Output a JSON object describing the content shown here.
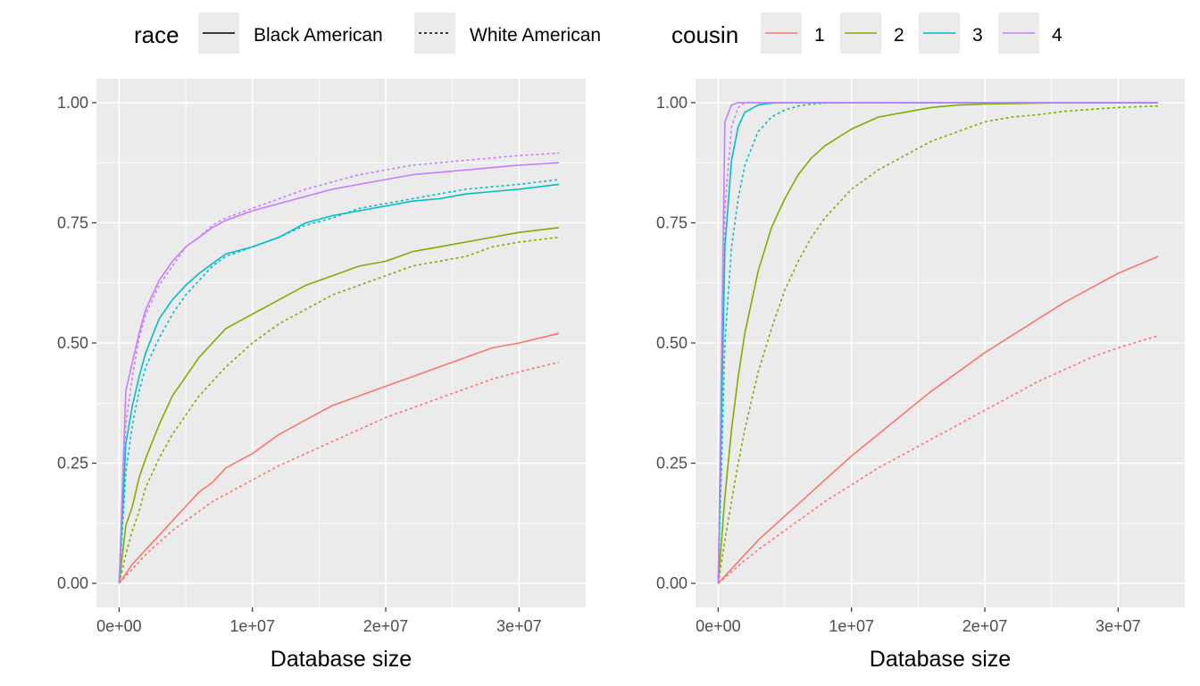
{
  "legend": {
    "race_title": "race",
    "race_items": [
      {
        "label": "Black American",
        "linetype": "solid"
      },
      {
        "label": "White American",
        "linetype": "dotted"
      }
    ],
    "cousin_title": "cousin",
    "cousin_items": [
      {
        "label": "1",
        "color": "#F8766D"
      },
      {
        "label": "2",
        "color": "#7CAE00"
      },
      {
        "label": "3",
        "color": "#00BFC4"
      },
      {
        "label": "4",
        "color": "#C77CFF"
      }
    ]
  },
  "chart_data": [
    {
      "type": "line",
      "title": "",
      "xlabel": "Database size",
      "ylabel": "",
      "xlim": [
        -1700000,
        35000000
      ],
      "ylim": [
        -0.05,
        1.05
      ],
      "x_ticks": [
        0,
        10000000,
        20000000,
        30000000
      ],
      "x_tick_labels": [
        "0e+00",
        "1e+07",
        "2e+07",
        "3e+07"
      ],
      "y_ticks": [
        0,
        0.25,
        0.5,
        0.75,
        1.0
      ],
      "y_tick_labels": [
        "0.00",
        "0.25",
        "0.50",
        "0.75",
        "1.00"
      ],
      "grid": true,
      "x": [
        0,
        500000,
        1000000,
        1500000,
        2000000,
        3000000,
        4000000,
        5000000,
        6000000,
        7000000,
        8000000,
        10000000,
        12000000,
        14000000,
        16000000,
        18000000,
        20000000,
        22000000,
        24000000,
        26000000,
        28000000,
        30000000,
        33000000
      ],
      "series": [
        {
          "name": "cousin 1 · Black American",
          "cousin": "1",
          "race": "Black American",
          "values": [
            0,
            0.02,
            0.04,
            0.055,
            0.07,
            0.1,
            0.13,
            0.16,
            0.19,
            0.21,
            0.24,
            0.27,
            0.31,
            0.34,
            0.37,
            0.39,
            0.41,
            0.43,
            0.45,
            0.47,
            0.49,
            0.5,
            0.52
          ]
        },
        {
          "name": "cousin 1 · White American",
          "cousin": "1",
          "race": "White American",
          "values": [
            0,
            0.015,
            0.03,
            0.045,
            0.06,
            0.085,
            0.11,
            0.13,
            0.15,
            0.17,
            0.185,
            0.215,
            0.245,
            0.27,
            0.295,
            0.32,
            0.345,
            0.365,
            0.385,
            0.405,
            0.425,
            0.44,
            0.46
          ]
        },
        {
          "name": "cousin 2 · Black American",
          "cousin": "2",
          "race": "Black American",
          "values": [
            0,
            0.12,
            0.16,
            0.22,
            0.26,
            0.33,
            0.39,
            0.43,
            0.47,
            0.5,
            0.53,
            0.56,
            0.59,
            0.62,
            0.64,
            0.66,
            0.67,
            0.69,
            0.7,
            0.71,
            0.72,
            0.73,
            0.74
          ]
        },
        {
          "name": "cousin 2 · White American",
          "cousin": "2",
          "race": "White American",
          "values": [
            0,
            0.06,
            0.11,
            0.15,
            0.2,
            0.26,
            0.31,
            0.35,
            0.39,
            0.42,
            0.45,
            0.5,
            0.54,
            0.57,
            0.6,
            0.62,
            0.64,
            0.66,
            0.67,
            0.68,
            0.7,
            0.71,
            0.72
          ]
        },
        {
          "name": "cousin 3 · Black American",
          "cousin": "3",
          "race": "Black American",
          "values": [
            0,
            0.29,
            0.37,
            0.43,
            0.48,
            0.55,
            0.59,
            0.62,
            0.645,
            0.665,
            0.685,
            0.7,
            0.72,
            0.75,
            0.765,
            0.775,
            0.785,
            0.795,
            0.8,
            0.81,
            0.815,
            0.82,
            0.83
          ]
        },
        {
          "name": "cousin 3 · White American",
          "cousin": "3",
          "race": "White American",
          "values": [
            0,
            0.23,
            0.33,
            0.4,
            0.45,
            0.51,
            0.56,
            0.6,
            0.63,
            0.66,
            0.68,
            0.7,
            0.72,
            0.745,
            0.76,
            0.78,
            0.79,
            0.8,
            0.81,
            0.82,
            0.825,
            0.83,
            0.84
          ]
        },
        {
          "name": "cousin 4 · Black American",
          "cousin": "4",
          "race": "Black American",
          "values": [
            0,
            0.4,
            0.46,
            0.52,
            0.57,
            0.63,
            0.67,
            0.7,
            0.72,
            0.74,
            0.755,
            0.775,
            0.79,
            0.805,
            0.82,
            0.83,
            0.84,
            0.85,
            0.855,
            0.86,
            0.865,
            0.87,
            0.875
          ]
        },
        {
          "name": "cousin 4 · White American",
          "cousin": "4",
          "race": "White American",
          "values": [
            0,
            0.33,
            0.43,
            0.51,
            0.56,
            0.62,
            0.66,
            0.7,
            0.72,
            0.745,
            0.76,
            0.78,
            0.8,
            0.82,
            0.835,
            0.85,
            0.86,
            0.87,
            0.875,
            0.88,
            0.885,
            0.89,
            0.895
          ]
        }
      ]
    },
    {
      "type": "line",
      "title": "",
      "xlabel": "Database size",
      "ylabel": "",
      "xlim": [
        -1700000,
        35000000
      ],
      "ylim": [
        -0.05,
        1.05
      ],
      "x_ticks": [
        0,
        10000000,
        20000000,
        30000000
      ],
      "x_tick_labels": [
        "0e+00",
        "1e+07",
        "2e+07",
        "3e+07"
      ],
      "y_ticks": [
        0,
        0.25,
        0.5,
        0.75,
        1.0
      ],
      "y_tick_labels": [
        "0.00",
        "0.25",
        "0.50",
        "0.75",
        "1.00"
      ],
      "grid": true,
      "x": [
        0,
        500000,
        1000000,
        1500000,
        2000000,
        3000000,
        4000000,
        5000000,
        6000000,
        7000000,
        8000000,
        10000000,
        12000000,
        14000000,
        16000000,
        18000000,
        20000000,
        22000000,
        24000000,
        26000000,
        28000000,
        30000000,
        33000000
      ],
      "series": [
        {
          "name": "cousin 1 · Black American",
          "cousin": "1",
          "race": "Black American",
          "values": [
            0,
            0.015,
            0.03,
            0.045,
            0.06,
            0.09,
            0.115,
            0.14,
            0.165,
            0.19,
            0.215,
            0.265,
            0.31,
            0.355,
            0.4,
            0.44,
            0.48,
            0.515,
            0.55,
            0.585,
            0.615,
            0.645,
            0.68
          ]
        },
        {
          "name": "cousin 1 · White American",
          "cousin": "1",
          "race": "White American",
          "values": [
            0,
            0.012,
            0.024,
            0.036,
            0.048,
            0.07,
            0.09,
            0.11,
            0.13,
            0.15,
            0.17,
            0.205,
            0.24,
            0.27,
            0.3,
            0.33,
            0.36,
            0.39,
            0.42,
            0.445,
            0.47,
            0.49,
            0.515
          ]
        },
        {
          "name": "cousin 2 · Black American",
          "cousin": "2",
          "race": "Black American",
          "values": [
            0,
            0.18,
            0.32,
            0.43,
            0.52,
            0.65,
            0.74,
            0.8,
            0.85,
            0.885,
            0.91,
            0.945,
            0.97,
            0.98,
            0.99,
            0.995,
            0.997,
            0.998,
            0.999,
            1.0,
            1.0,
            1.0,
            1.0
          ]
        },
        {
          "name": "cousin 2 · White American",
          "cousin": "2",
          "race": "White American",
          "values": [
            0,
            0.09,
            0.17,
            0.25,
            0.32,
            0.44,
            0.53,
            0.61,
            0.67,
            0.72,
            0.76,
            0.82,
            0.86,
            0.89,
            0.92,
            0.94,
            0.96,
            0.97,
            0.975,
            0.982,
            0.986,
            0.99,
            0.993
          ]
        },
        {
          "name": "cousin 3 · Black American",
          "cousin": "3",
          "race": "Black American",
          "values": [
            0,
            0.7,
            0.88,
            0.95,
            0.98,
            0.995,
            0.999,
            1.0,
            1.0,
            1.0,
            1.0,
            1.0,
            1.0,
            1.0,
            1.0,
            1.0,
            1.0,
            1.0,
            1.0,
            1.0,
            1.0,
            1.0,
            1.0
          ]
        },
        {
          "name": "cousin 3 · White American",
          "cousin": "3",
          "race": "White American",
          "values": [
            0,
            0.5,
            0.7,
            0.8,
            0.87,
            0.94,
            0.97,
            0.985,
            0.993,
            0.997,
            0.999,
            1.0,
            1.0,
            1.0,
            1.0,
            1.0,
            1.0,
            1.0,
            1.0,
            1.0,
            1.0,
            1.0,
            1.0
          ]
        },
        {
          "name": "cousin 4 · Black American",
          "cousin": "4",
          "race": "Black American",
          "values": [
            0,
            0.96,
            0.995,
            1.0,
            1.0,
            1.0,
            1.0,
            1.0,
            1.0,
            1.0,
            1.0,
            1.0,
            1.0,
            1.0,
            1.0,
            1.0,
            1.0,
            1.0,
            1.0,
            1.0,
            1.0,
            1.0,
            1.0
          ]
        },
        {
          "name": "cousin 4 · White American",
          "cousin": "4",
          "race": "White American",
          "values": [
            0,
            0.78,
            0.95,
            0.99,
            1.0,
            1.0,
            1.0,
            1.0,
            1.0,
            1.0,
            1.0,
            1.0,
            1.0,
            1.0,
            1.0,
            1.0,
            1.0,
            1.0,
            1.0,
            1.0,
            1.0,
            1.0,
            1.0
          ]
        }
      ]
    }
  ]
}
